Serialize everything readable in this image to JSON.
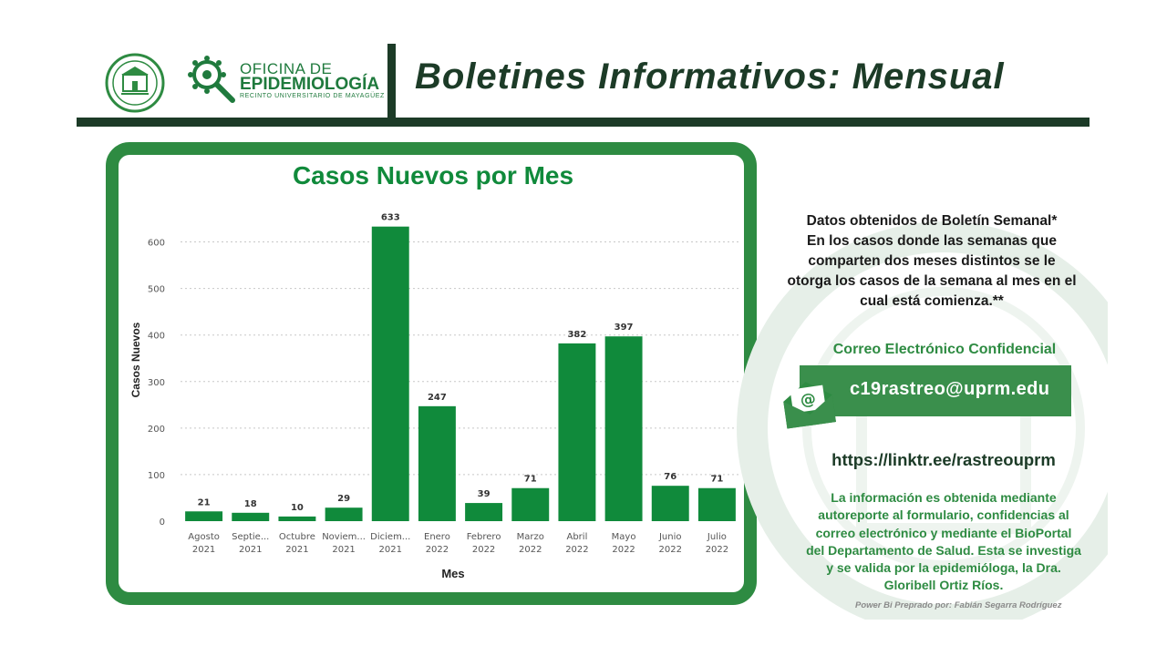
{
  "header": {
    "title": "Boletines Informativos:  Mensual",
    "logo_line1": "OFICINA DE",
    "logo_line2": "EPIDEMIOLOGÍA",
    "logo_line3": "RECINTO UNIVERSITARIO DE MAYAGÜEZ"
  },
  "colors": {
    "brand_green": "#2e8b42",
    "bar_green": "#108a3b",
    "dark_green": "#1c3b27"
  },
  "icons": [
    "university-seal-icon",
    "epidemiology-virus-icon",
    "envelope-at-icon"
  ],
  "chart_data": {
    "type": "bar",
    "title": "Casos Nuevos por Mes",
    "xlabel": "Mes",
    "ylabel": "Casos Nuevos",
    "categories": [
      [
        "Agosto",
        "2021"
      ],
      [
        "Septie...",
        "2021"
      ],
      [
        "Octubre",
        "2021"
      ],
      [
        "Noviem...",
        "2021"
      ],
      [
        "Diciem...",
        "2021"
      ],
      [
        "Enero",
        "2022"
      ],
      [
        "Febrero",
        "2022"
      ],
      [
        "Marzo",
        "2022"
      ],
      [
        "Abril",
        "2022"
      ],
      [
        "Mayo",
        "2022"
      ],
      [
        "Junio",
        "2022"
      ],
      [
        "Julio",
        "2022"
      ]
    ],
    "values": [
      21,
      18,
      10,
      29,
      633,
      247,
      39,
      71,
      382,
      397,
      76,
      71
    ],
    "ylim": [
      0,
      650
    ],
    "yticks": [
      0,
      100,
      200,
      300,
      400,
      500,
      600
    ],
    "grid": true,
    "data_labels": true
  },
  "panel": {
    "note_lines": [
      "Datos obtenidos de Boletín Semanal*",
      "En los casos donde las semanas que",
      "comparten dos meses distintos se le",
      "otorga los casos de la semana al mes en el",
      "cual está comienza.**"
    ],
    "email_heading": "Correo Electrónico Confidencial",
    "email": "c19rastreo@uprm.edu",
    "linktree": "https://linktr.ee/rastreouprm",
    "info_lines": [
      "La información es obtenida mediante",
      "autoreporte al formulario, confidencias al",
      "correo electrónico y mediante el BioPortal",
      "del Departamento de Salud. Esta se investiga",
      "y se valida por la epidemióloga, la Dra.",
      "Gloribell Ortiz Ríos."
    ],
    "credit": "Power Bi Preprado por: Fabián Segarra Rodríguez"
  }
}
